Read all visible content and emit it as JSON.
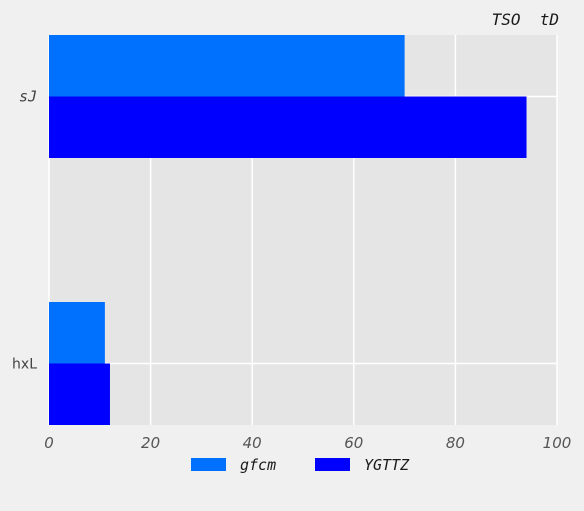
{
  "chart_data": {
    "type": "bar",
    "orientation": "horizontal",
    "title": "TSO  tD",
    "categories": [
      "sJ",
      "hxL"
    ],
    "series": [
      {
        "name": "gfcm",
        "color": "#0070ff",
        "values": [
          70,
          11
        ]
      },
      {
        "name": "YGTTZ",
        "color": "#0000ff",
        "values": [
          94,
          12
        ]
      }
    ],
    "xlim": [
      0,
      100
    ],
    "xticks": [
      0,
      20,
      40,
      60,
      80,
      100
    ],
    "grid": true,
    "legend_position": "bottom-center",
    "plot_background": "#e5e5e5",
    "grid_color": "#ffffff"
  }
}
